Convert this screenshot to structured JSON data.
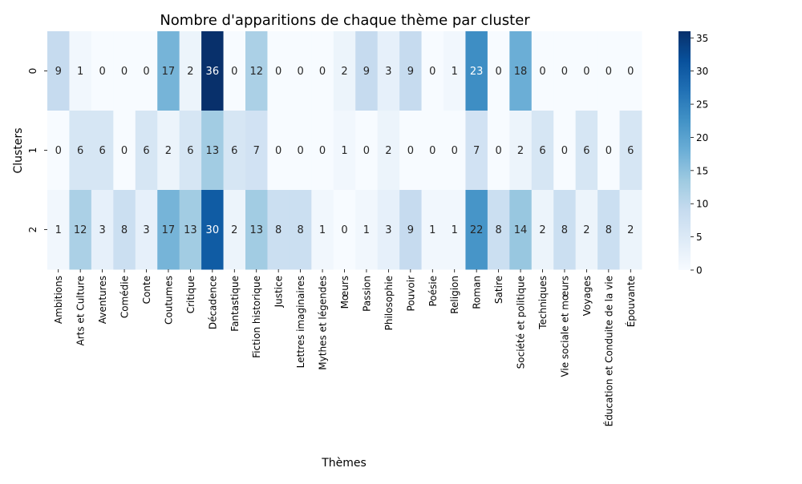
{
  "chart_data": {
    "type": "heatmap",
    "title": "Nombre d'apparitions de chaque thème par cluster",
    "xlabel": "Thèmes",
    "ylabel": "Clusters",
    "colormap": "Blues",
    "color_range": [
      0,
      36
    ],
    "colorbar_ticks": [
      0,
      5,
      10,
      15,
      20,
      25,
      30,
      35
    ],
    "rows": [
      "0",
      "1",
      "2"
    ],
    "columns": [
      "Ambitions",
      "Arts et Culture",
      "Aventures",
      "Comédie",
      "Conte",
      "Coutumes",
      "Critique",
      "Décadence",
      "Fantastique",
      "Fiction historique",
      "Justice",
      "Lettres imaginaires",
      "Mythes et légendes",
      "Mœurs",
      "Passion",
      "Philosophie",
      "Pouvoir",
      "Poésie",
      "Religion",
      "Roman",
      "Satire",
      "Société et politique",
      "Techniques",
      "Vie sociale et mœurs",
      "Voyages",
      "Éducation et Conduite de la vie",
      "Épouvante"
    ],
    "values": [
      [
        9,
        1,
        0,
        0,
        0,
        17,
        2,
        36,
        0,
        12,
        0,
        0,
        0,
        2,
        9,
        3,
        9,
        0,
        1,
        23,
        0,
        18,
        0,
        0,
        0,
        0,
        0
      ],
      [
        0,
        6,
        6,
        0,
        6,
        2,
        6,
        13,
        6,
        7,
        0,
        0,
        0,
        1,
        0,
        2,
        0,
        0,
        0,
        7,
        0,
        2,
        6,
        0,
        6,
        0,
        6
      ],
      [
        1,
        12,
        3,
        8,
        3,
        17,
        13,
        30,
        2,
        13,
        8,
        8,
        1,
        0,
        1,
        3,
        9,
        1,
        1,
        22,
        8,
        14,
        2,
        8,
        2,
        8,
        2
      ]
    ]
  }
}
